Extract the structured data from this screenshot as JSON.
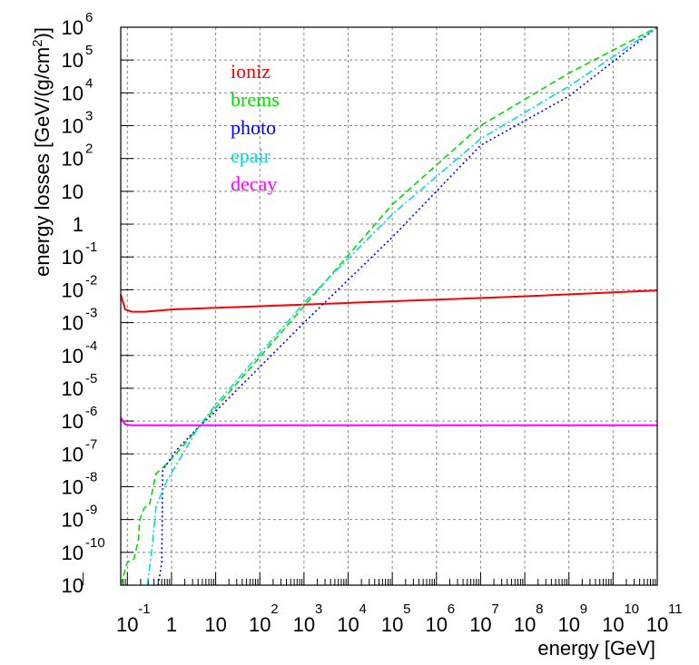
{
  "chart_data": {
    "type": "line",
    "xlabel": "energy [GeV]",
    "ylabel": "energy losses [GeV/(g/cm",
    "ylabel_sup": "2",
    "ylabel_end": ")]",
    "xscale": "log",
    "yscale": "log",
    "xlim_log10": [
      -1.15,
      11
    ],
    "ylim_log10": [
      -11,
      6
    ],
    "grid": true,
    "legend_position": "upper-left",
    "x_ticks": [
      {
        "base": "10",
        "exp": "-1"
      },
      {
        "base": "1",
        "exp": ""
      },
      {
        "base": "10",
        "exp": ""
      },
      {
        "base": "10",
        "exp": "2"
      },
      {
        "base": "10",
        "exp": "3"
      },
      {
        "base": "10",
        "exp": "4"
      },
      {
        "base": "10",
        "exp": "5"
      },
      {
        "base": "10",
        "exp": "6"
      },
      {
        "base": "10",
        "exp": "7"
      },
      {
        "base": "10",
        "exp": "8"
      },
      {
        "base": "10",
        "exp": "9"
      },
      {
        "base": "10",
        "exp": "10"
      },
      {
        "base": "10",
        "exp": "11"
      }
    ],
    "y_ticks": [
      {
        "base": "10",
        "exp": "6"
      },
      {
        "base": "10",
        "exp": "5"
      },
      {
        "base": "10",
        "exp": "4"
      },
      {
        "base": "10",
        "exp": "3"
      },
      {
        "base": "10",
        "exp": "2"
      },
      {
        "base": "10",
        "exp": ""
      },
      {
        "base": "1",
        "exp": ""
      },
      {
        "base": "10",
        "exp": "-1"
      },
      {
        "base": "10",
        "exp": "-2"
      },
      {
        "base": "10",
        "exp": "-3"
      },
      {
        "base": "10",
        "exp": "-4"
      },
      {
        "base": "10",
        "exp": "-5"
      },
      {
        "base": "10",
        "exp": "-6"
      },
      {
        "base": "10",
        "exp": "-7"
      },
      {
        "base": "10",
        "exp": "-8"
      },
      {
        "base": "10",
        "exp": "-9"
      },
      {
        "base": "10",
        "exp": "-10"
      },
      {
        "base": "10",
        "exp": ""
      }
    ],
    "series": [
      {
        "name": "ioniz",
        "color": "#ff0000",
        "dash": "solid",
        "points": [
          [
            -1.15,
            -2.15
          ],
          [
            -1.05,
            -2.6
          ],
          [
            -0.9,
            -2.67
          ],
          [
            -0.6,
            -2.67
          ],
          [
            0,
            -2.6
          ],
          [
            2,
            -2.5
          ],
          [
            4,
            -2.4
          ],
          [
            6,
            -2.3
          ],
          [
            8,
            -2.2
          ],
          [
            10,
            -2.08
          ],
          [
            11,
            -2.02
          ]
        ]
      },
      {
        "name": "brems",
        "color": "#00dd00",
        "dash": "dashed",
        "points": [
          [
            -1.15,
            -11
          ],
          [
            -1.0,
            -10.3
          ],
          [
            -0.85,
            -10.2
          ],
          [
            -0.75,
            -9.6
          ],
          [
            -0.72,
            -9.0
          ],
          [
            -0.62,
            -8.65
          ],
          [
            -0.5,
            -8.55
          ],
          [
            -0.35,
            -7.6
          ],
          [
            -0.1,
            -7.3
          ],
          [
            0.3,
            -6.7
          ],
          [
            0.6,
            -6.2
          ],
          [
            1,
            -5.6
          ],
          [
            3,
            -2.5
          ],
          [
            5,
            0.6
          ],
          [
            7,
            3.0
          ],
          [
            9,
            4.6
          ],
          [
            11,
            6.0
          ]
        ]
      },
      {
        "name": "photo",
        "color": "#0000ff",
        "dash": "dotted",
        "points": [
          [
            -0.3,
            -11
          ],
          [
            -0.22,
            -10.3
          ],
          [
            -0.2,
            -7.5
          ],
          [
            0.1,
            -6.9
          ],
          [
            0.6,
            -6.2
          ],
          [
            1,
            -5.7
          ],
          [
            3,
            -3.0
          ],
          [
            5,
            -0.4
          ],
          [
            7,
            2.4
          ],
          [
            9,
            3.9
          ],
          [
            11,
            6.0
          ]
        ]
      },
      {
        "name": "epair",
        "color": "#00dddd",
        "dash": "dashdot",
        "points": [
          [
            -0.55,
            -11
          ],
          [
            -0.45,
            -10.0
          ],
          [
            -0.35,
            -8.6
          ],
          [
            -0.1,
            -7.8
          ],
          [
            0.3,
            -6.9
          ],
          [
            0.6,
            -6.2
          ],
          [
            1,
            -5.5
          ],
          [
            3,
            -2.4
          ],
          [
            5,
            0.3
          ],
          [
            7,
            2.6
          ],
          [
            9,
            4.2
          ],
          [
            11,
            6.0
          ]
        ]
      },
      {
        "name": "decay",
        "color": "#ff00ff",
        "dash": "solid",
        "points": [
          [
            -1.15,
            -5.9
          ],
          [
            -1.05,
            -6.1
          ],
          [
            -0.9,
            -6.13
          ],
          [
            0,
            -6.13
          ],
          [
            11,
            -6.13
          ]
        ]
      }
    ]
  }
}
